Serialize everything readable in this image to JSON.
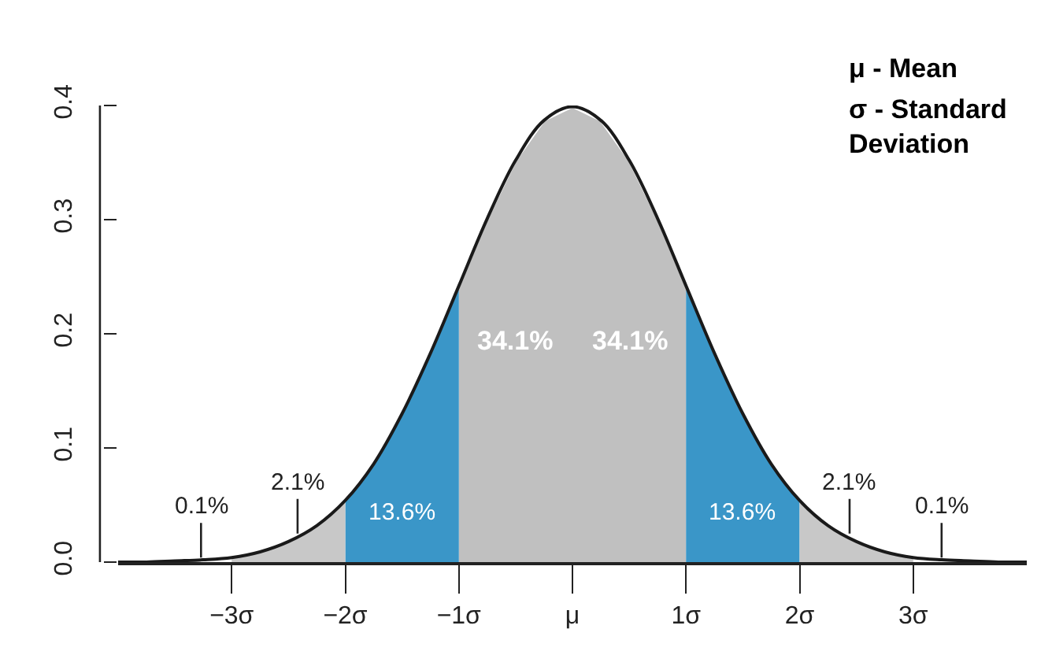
{
  "chart_data": {
    "type": "area",
    "xlim": [
      -4,
      4
    ],
    "ylim": [
      0,
      0.4
    ],
    "xticks": [
      {
        "value": -3,
        "label": "−3σ"
      },
      {
        "value": -2,
        "label": "−2σ"
      },
      {
        "value": -1,
        "label": "−1σ"
      },
      {
        "value": 0,
        "label": "μ"
      },
      {
        "value": 1,
        "label": "1σ"
      },
      {
        "value": 2,
        "label": "2σ"
      },
      {
        "value": 3,
        "label": "3σ"
      }
    ],
    "yticks": [
      {
        "value": 0,
        "label": "0.0"
      },
      0.1,
      0.2,
      0.3,
      {
        "value": 0.4,
        "label": "0.4"
      }
    ],
    "grid": false,
    "series": [
      {
        "color": "#c0c0c0",
        "x": [
          -1,
          -0.75,
          -0.5,
          -0.25,
          0
        ],
        "values": [
          0.242,
          0.301,
          0.352,
          0.387,
          0.399
        ]
      },
      {
        "color": "#c0c0c0",
        "x": [
          0,
          0.25,
          0.5,
          0.75,
          1
        ],
        "values": [
          0.399,
          0.387,
          0.352,
          0.301,
          0.242
        ]
      },
      {
        "color": "#3a96c8",
        "x": [
          -2,
          -1.75,
          -1.5,
          -1.25,
          -1
        ],
        "values": [
          0.054,
          0.086,
          0.13,
          0.183,
          0.242
        ]
      },
      {
        "color": "#3a96c8",
        "x": [
          1,
          1.25,
          1.5,
          1.75,
          2
        ],
        "values": [
          0.242,
          0.183,
          0.13,
          0.086,
          0.054
        ]
      },
      {
        "color": "#c8c8c8",
        "x": [
          -3,
          -2.75,
          -2.5,
          -2.25,
          -2
        ],
        "values": [
          0.004,
          0.009,
          0.018,
          0.032,
          0.054
        ]
      },
      {
        "color": "#c8c8c8",
        "x": [
          2,
          2.25,
          2.5,
          2.75,
          3
        ],
        "values": [
          0.054,
          0.032,
          0.018,
          0.009,
          0.004
        ]
      },
      {
        "type": "line",
        "color": "#1a1a1a",
        "x": [
          -4,
          -3.75,
          -3.5,
          -3.25,
          -3,
          -2.75,
          -2.5,
          -2.25,
          -2,
          -1.75,
          -1.5,
          -1.25,
          -1,
          -0.75,
          -0.5,
          -0.25,
          0,
          0.25,
          0.5,
          0.75,
          1,
          1.25,
          1.5,
          1.75,
          2,
          2.25,
          2.5,
          2.75,
          3,
          3.25,
          3.5,
          3.75,
          4
        ],
        "values": [
          0,
          0,
          0.001,
          0.002,
          0.004,
          0.009,
          0.018,
          0.032,
          0.054,
          0.086,
          0.13,
          0.183,
          0.242,
          0.301,
          0.352,
          0.387,
          0.399,
          0.387,
          0.352,
          0.301,
          0.242,
          0.183,
          0.13,
          0.086,
          0.054,
          0.032,
          0.018,
          0.009,
          0.004,
          0.002,
          0.001,
          0,
          0
        ]
      }
    ],
    "annotations": [
      "34.1%",
      "34.1%",
      "13.6%",
      "13.6%",
      {
        "text": "0.1%",
        "x": -3.27,
        "y": 0.004
      },
      {
        "text": "2.1%",
        "x": -2.42,
        "y": 0.025
      },
      {
        "text": "2.1%",
        "x": 2.44,
        "y": 0.025
      },
      {
        "text": "0.1%",
        "x": 3.25,
        "y": 0.004
      },
      "μ - Mean",
      "σ - Standard\nDeviation"
    ]
  }
}
